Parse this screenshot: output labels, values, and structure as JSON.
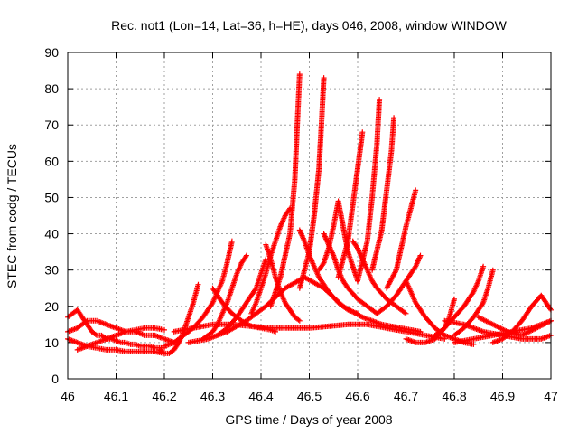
{
  "chart_data": {
    "type": "scatter",
    "title": "Rec. not1 (Lon=14, Lat=36, h=HE), days 046, 2008, window WINDOW",
    "xlabel": "GPS time / Days of year 2008",
    "ylabel": "STEC from codg / TECUs",
    "xlim": [
      46,
      47
    ],
    "ylim": [
      0,
      90
    ],
    "x_ticks": [
      "46",
      "46.1",
      "46.2",
      "46.3",
      "46.4",
      "46.5",
      "46.6",
      "46.7",
      "46.8",
      "46.9",
      "47"
    ],
    "y_ticks": [
      "0",
      "10",
      "20",
      "30",
      "40",
      "50",
      "60",
      "70",
      "80",
      "90"
    ],
    "grid": true,
    "marker": "+",
    "color": "#ff0000",
    "series": [
      {
        "x": [
          46.0,
          46.01,
          46.02,
          46.03,
          46.04,
          46.05,
          46.06,
          46.07,
          46.08,
          46.09,
          46.1,
          46.11,
          46.12,
          46.13,
          46.14,
          46.15,
          46.16,
          46.17,
          46.18,
          46.19,
          46.2
        ],
        "y": [
          17,
          18,
          19,
          17,
          15,
          13,
          12,
          12,
          11,
          11,
          10.5,
          10,
          10,
          9.5,
          9.5,
          9,
          9,
          9,
          8.5,
          8.5,
          8.5
        ]
      },
      {
        "x": [
          46.0,
          46.02,
          46.04,
          46.06,
          46.08,
          46.1,
          46.12,
          46.14,
          46.16,
          46.18,
          46.2
        ],
        "y": [
          11,
          10,
          9,
          8.5,
          8,
          8,
          7.5,
          7.5,
          7.5,
          7.5,
          7
        ]
      },
      {
        "x": [
          46.0,
          46.02,
          46.04,
          46.06,
          46.08,
          46.1,
          46.12,
          46.14,
          46.16,
          46.18,
          46.2,
          46.22
        ],
        "y": [
          13,
          14,
          16,
          16,
          15,
          14,
          13,
          13,
          12,
          12,
          11,
          10
        ]
      },
      {
        "x": [
          46.02,
          46.04,
          46.06,
          46.08,
          46.1,
          46.12,
          46.14,
          46.16,
          46.18,
          46.2
        ],
        "y": [
          8,
          9,
          10,
          11,
          12,
          13,
          13.5,
          14,
          14,
          13.5
        ]
      },
      {
        "x": [
          46.19,
          46.2,
          46.21,
          46.22,
          46.23,
          46.24,
          46.25,
          46.26,
          46.27
        ],
        "y": [
          8,
          7,
          7,
          8,
          10,
          13,
          17,
          21,
          26
        ]
      },
      {
        "x": [
          46.2,
          46.22,
          46.24,
          46.26,
          46.28,
          46.3,
          46.32,
          46.33,
          46.34
        ],
        "y": [
          9,
          10,
          12,
          14,
          17,
          21,
          27,
          32,
          38
        ]
      },
      {
        "x": [
          46.28,
          46.3,
          46.31,
          46.32,
          46.33,
          46.34,
          46.35,
          46.36,
          46.37
        ],
        "y": [
          11,
          13,
          15,
          18,
          21,
          25,
          29,
          32,
          34
        ]
      },
      {
        "x": [
          46.31,
          46.33,
          46.35,
          46.37,
          46.39,
          46.4,
          46.41
        ],
        "y": [
          12,
          14,
          17,
          21,
          25,
          29,
          33
        ]
      },
      {
        "x": [
          46.3,
          46.32,
          46.34,
          46.36,
          46.38,
          46.4,
          46.42,
          46.43
        ],
        "y": [
          25,
          21,
          18,
          16,
          14.5,
          14,
          13.5,
          13
        ]
      },
      {
        "x": [
          46.38,
          46.39,
          46.4,
          46.41,
          46.42,
          46.43,
          46.44,
          46.45,
          46.46
        ],
        "y": [
          18,
          21,
          25,
          29,
          34,
          38,
          42,
          45,
          47
        ]
      },
      {
        "x": [
          46.41,
          46.42,
          46.43,
          46.44,
          46.45,
          46.46,
          46.47,
          46.48
        ],
        "y": [
          37,
          33,
          28,
          24,
          21,
          19,
          17,
          16
        ]
      },
      {
        "x": [
          46.42,
          46.44,
          46.46,
          46.47,
          46.475,
          46.48
        ],
        "y": [
          20,
          28,
          40,
          55,
          70,
          84
        ]
      },
      {
        "x": [
          46.48,
          46.49,
          46.5,
          46.51,
          46.52,
          46.54,
          46.56,
          46.58,
          46.6
        ],
        "y": [
          41,
          38,
          34,
          31,
          28,
          24,
          21,
          19,
          18
        ]
      },
      {
        "x": [
          46.48,
          46.5,
          46.51,
          46.52,
          46.525,
          46.53
        ],
        "y": [
          25,
          35,
          45,
          58,
          70,
          83
        ]
      },
      {
        "x": [
          46.52,
          46.53,
          46.54,
          46.55,
          46.56,
          46.58,
          46.6
        ],
        "y": [
          30,
          32,
          36,
          42,
          49,
          35,
          27
        ]
      },
      {
        "x": [
          46.53,
          46.55,
          46.56,
          46.57,
          46.58,
          46.6,
          46.62,
          46.64
        ],
        "y": [
          40,
          34,
          30,
          27,
          25,
          22,
          20,
          18
        ]
      },
      {
        "x": [
          46.56,
          46.58,
          46.59,
          46.6,
          46.61
        ],
        "y": [
          28,
          38,
          48,
          58,
          68
        ]
      },
      {
        "x": [
          46.59,
          46.6,
          46.61,
          46.62,
          46.63,
          46.64,
          46.66,
          46.68,
          46.7
        ],
        "y": [
          38,
          36,
          33,
          30,
          27,
          25,
          22,
          20,
          18
        ]
      },
      {
        "x": [
          46.6,
          46.62,
          46.63,
          46.64,
          46.645
        ],
        "y": [
          27,
          38,
          50,
          65,
          77
        ]
      },
      {
        "x": [
          46.63,
          46.65,
          46.66,
          46.67,
          46.675
        ],
        "y": [
          30,
          41,
          52,
          63,
          72
        ]
      },
      {
        "x": [
          46.66,
          46.68,
          46.69,
          46.7,
          46.71,
          46.72
        ],
        "y": [
          25,
          30,
          36,
          42,
          47,
          52
        ]
      },
      {
        "x": [
          46.64,
          46.66,
          46.68,
          46.7,
          46.72,
          46.73
        ],
        "y": [
          18,
          20,
          23,
          27,
          31,
          34
        ]
      },
      {
        "x": [
          46.7,
          46.72,
          46.74,
          46.76,
          46.78,
          46.8,
          46.82,
          46.84
        ],
        "y": [
          27,
          21,
          17,
          14,
          12,
          11,
          10,
          9.5
        ]
      },
      {
        "x": [
          46.76,
          46.78,
          46.8,
          46.82,
          46.84,
          46.85,
          46.86
        ],
        "y": [
          12,
          14,
          17,
          20,
          24,
          27,
          31
        ]
      },
      {
        "x": [
          46.8,
          46.82,
          46.84,
          46.86,
          46.87,
          46.88
        ],
        "y": [
          12,
          14,
          17,
          21,
          25,
          30
        ]
      },
      {
        "x": [
          46.7,
          46.72,
          46.74,
          46.76,
          46.78,
          46.79,
          46.8
        ],
        "y": [
          11,
          10,
          10,
          11,
          14,
          17,
          22
        ]
      },
      {
        "x": [
          46.8,
          46.84,
          46.88,
          46.92,
          46.96,
          47.0
        ],
        "y": [
          10,
          11,
          12,
          13,
          14,
          16
        ]
      },
      {
        "x": [
          46.78,
          46.82,
          46.86,
          46.9,
          46.94,
          46.98,
          47.0
        ],
        "y": [
          16,
          15,
          13,
          12,
          11,
          11,
          12
        ]
      },
      {
        "x": [
          46.88,
          46.9,
          46.92,
          46.94,
          46.96,
          46.98,
          47.0
        ],
        "y": [
          10,
          11,
          13,
          16,
          20,
          23,
          19
        ]
      },
      {
        "x": [
          46.85,
          46.88,
          46.91,
          46.94,
          46.97,
          47.0
        ],
        "y": [
          17,
          15,
          13,
          12,
          14,
          16
        ]
      },
      {
        "x": [
          46.22,
          46.26,
          46.3,
          46.34,
          46.38,
          46.42,
          46.46,
          46.5,
          46.54,
          46.58,
          46.62,
          46.66,
          46.7,
          46.74,
          46.78
        ],
        "y": [
          13,
          14,
          15,
          15,
          14.5,
          14,
          14,
          14,
          14.5,
          15,
          15,
          14,
          13,
          12,
          11
        ]
      },
      {
        "x": [
          46.25,
          46.29,
          46.33,
          46.37,
          46.41,
          46.45,
          46.49,
          46.53,
          46.57,
          46.61,
          46.65,
          46.69,
          46.73
        ],
        "y": [
          10,
          11,
          13,
          16,
          20,
          25,
          28,
          25,
          20,
          17,
          15,
          14,
          13
        ]
      }
    ]
  }
}
